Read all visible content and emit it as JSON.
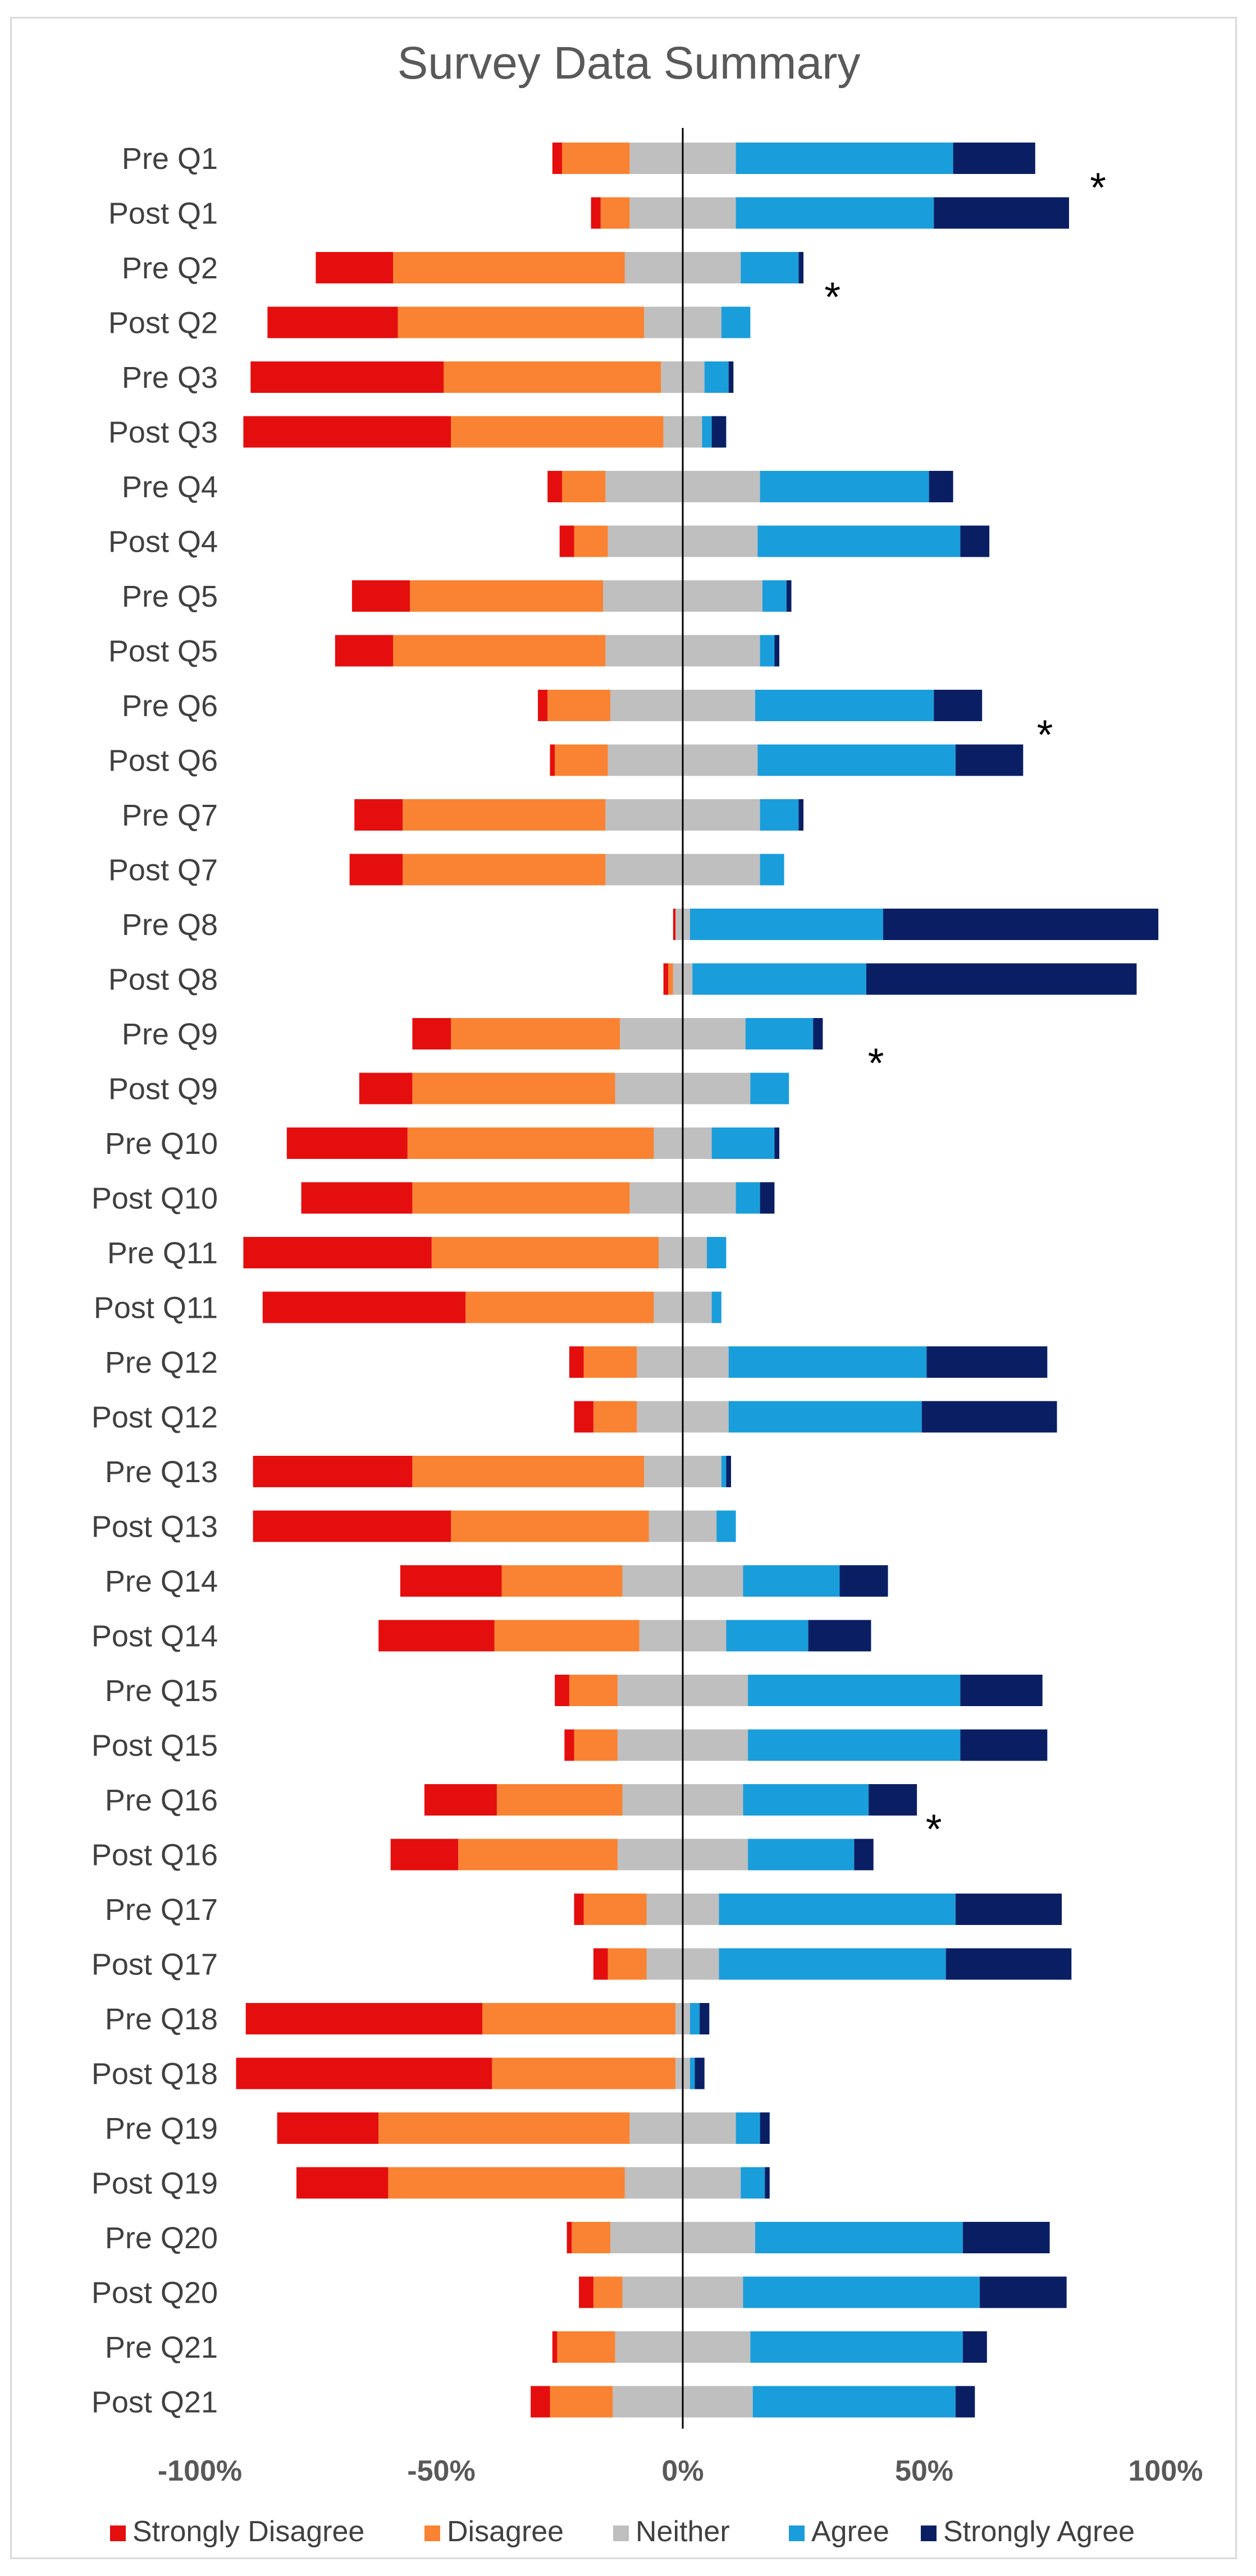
{
  "chart_data": {
    "type": "bar",
    "subtype": "diverging-stacked-horizontal",
    "title": "Survey Data Summary",
    "xlim": [
      -100,
      100
    ],
    "x_ticks": [
      -100,
      -50,
      0,
      50,
      100
    ],
    "x_tick_labels": [
      "-100%",
      "-50%",
      "0%",
      "50%",
      "100%"
    ],
    "legend_position": "bottom",
    "series_colors": {
      "Strongly Disagree": "#e50e0e",
      "Disagree": "#f98332",
      "Neither": "#bfbfbf",
      "Agree": "#1a9ddb",
      "Strongly Agree": "#0a1f63"
    },
    "legend": [
      "Strongly Disagree",
      "Disagree",
      "Neither",
      "Agree",
      "Strongly Agree"
    ],
    "categories": [
      "Pre Q1",
      "Post Q1",
      "Pre Q2",
      "Post Q2",
      "Pre Q3",
      "Post Q3",
      "Pre Q4",
      "Post Q4",
      "Pre Q5",
      "Post Q5",
      "Pre Q6",
      "Post Q6",
      "Pre Q7",
      "Post Q7",
      "Pre Q8",
      "Post Q8",
      "Pre Q9",
      "Post Q9",
      "Pre Q10",
      "Post Q10",
      "Pre Q11",
      "Post Q11",
      "Pre Q12",
      "Post Q12",
      "Pre Q13",
      "Post Q13",
      "Pre Q14",
      "Post Q14",
      "Pre Q15",
      "Post Q15",
      "Pre Q16",
      "Post Q16",
      "Pre Q17",
      "Post Q17",
      "Pre Q18",
      "Post Q18",
      "Pre Q19",
      "Post Q19",
      "Pre Q20",
      "Post Q20",
      "Pre Q21",
      "Post Q21"
    ],
    "series": [
      {
        "name": "Strongly Disagree",
        "values": [
          2,
          2,
          16,
          27,
          40,
          43,
          3,
          3,
          12,
          12,
          2,
          1,
          10,
          11,
          0.5,
          1,
          8,
          11,
          25,
          23,
          39,
          42,
          3,
          4,
          33,
          41,
          21,
          24,
          3,
          2,
          15,
          14,
          2,
          3,
          49,
          53,
          21,
          19,
          1,
          3,
          1,
          4
        ]
      },
      {
        "name": "Disagree",
        "values": [
          14,
          6,
          48,
          51,
          45,
          44,
          9,
          7,
          40,
          44,
          13,
          11,
          42,
          42,
          0,
          1,
          35,
          42,
          51,
          45,
          47,
          39,
          11,
          9,
          48,
          41,
          25,
          30,
          10,
          9,
          26,
          33,
          13,
          8,
          40,
          38,
          52,
          49,
          8,
          6,
          12,
          13
        ]
      },
      {
        "name": "Neither",
        "values": [
          22,
          22,
          24,
          16,
          9,
          8,
          32,
          31,
          33,
          32,
          30,
          31,
          32,
          32,
          3,
          4,
          26,
          28,
          12,
          22,
          10,
          12,
          19,
          19,
          16,
          14,
          25,
          18,
          27,
          27,
          25,
          27,
          15,
          15,
          3,
          3,
          22,
          24,
          30,
          25,
          28,
          29
        ]
      },
      {
        "name": "Agree",
        "values": [
          45,
          41,
          12,
          6,
          5,
          2,
          35,
          42,
          5,
          3,
          37,
          41,
          8,
          5,
          40,
          36,
          14,
          8,
          13,
          5,
          4,
          2,
          41,
          40,
          1,
          4,
          20,
          17,
          44,
          44,
          26,
          22,
          49,
          47,
          2,
          1,
          5,
          5,
          43,
          49,
          44,
          42
        ]
      },
      {
        "name": "Strongly Agree",
        "values": [
          17,
          28,
          1,
          0,
          1,
          3,
          5,
          6,
          1,
          1,
          10,
          14,
          1,
          0,
          57,
          56,
          2,
          0,
          1,
          3,
          0,
          0,
          25,
          28,
          1,
          0,
          10,
          13,
          17,
          18,
          10,
          4,
          22,
          26,
          2,
          2,
          2,
          1,
          18,
          18,
          5,
          4
        ]
      }
    ],
    "annotations": [
      {
        "text": "*",
        "category": "Post Q1",
        "x": 86
      },
      {
        "text": "*",
        "category": "Post Q2",
        "x": 31
      },
      {
        "text": "*",
        "category": "Post Q6",
        "x": 75
      },
      {
        "text": "*",
        "category": "Post Q9",
        "x": 40
      },
      {
        "text": "*",
        "category": "Post Q16",
        "x": 52
      }
    ]
  }
}
